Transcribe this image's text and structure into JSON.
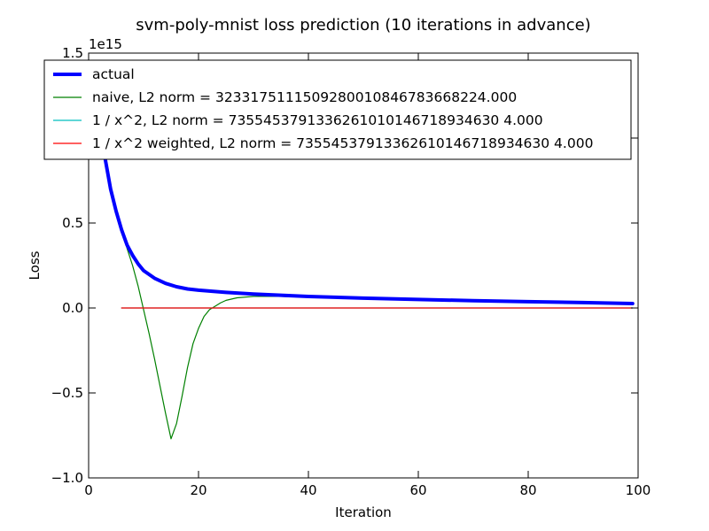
{
  "chart_data": {
    "type": "line",
    "title": "svm-poly-mnist loss prediction (10 iterations in advance)",
    "xlabel": "Iteration",
    "ylabel": "Loss",
    "xlim": [
      0,
      100
    ],
    "ylim": [
      -1.0,
      1.5
    ],
    "y_offset_label": "1e15",
    "x_ticks": [
      0,
      20,
      40,
      60,
      80,
      100
    ],
    "x_tick_labels": [
      "0",
      "20",
      "40",
      "60",
      "80",
      "100"
    ],
    "y_ticks": [
      -1.0,
      -0.5,
      0.0,
      0.5,
      1.0,
      1.5
    ],
    "y_tick_labels": [
      "−1.0",
      "−0.5",
      "0.0",
      "0.5",
      "1.0",
      "1.5"
    ],
    "grid": false,
    "legend_position": "upper-left",
    "series": [
      {
        "name": "actual",
        "color": "#0000ff",
        "x": [
          1,
          2,
          3,
          4,
          5,
          6,
          7,
          8,
          9,
          10,
          12,
          14,
          16,
          18,
          20,
          25,
          30,
          35,
          40,
          50,
          60,
          70,
          80,
          90,
          99
        ],
        "y": [
          1.45,
          1.1,
          0.88,
          0.7,
          0.57,
          0.46,
          0.37,
          0.31,
          0.26,
          0.22,
          0.175,
          0.145,
          0.125,
          0.112,
          0.105,
          0.092,
          0.082,
          0.075,
          0.068,
          0.058,
          0.05,
          0.043,
          0.037,
          0.032,
          0.026
        ]
      },
      {
        "name": "naive, L2 norm = 3233175111509280010846783668224.000",
        "color": "#008000",
        "x": [
          6,
          7,
          8,
          9,
          10,
          11,
          12,
          13,
          14,
          15,
          16,
          17,
          18,
          19,
          20,
          21,
          22,
          23,
          24,
          25,
          27,
          30,
          35,
          40,
          50,
          60,
          70,
          80,
          90,
          99
        ],
        "y": [
          0.46,
          0.35,
          0.25,
          0.13,
          -0.01,
          -0.15,
          -0.3,
          -0.46,
          -0.62,
          -0.77,
          -0.68,
          -0.52,
          -0.35,
          -0.21,
          -0.12,
          -0.05,
          -0.01,
          0.01,
          0.03,
          0.045,
          0.06,
          0.068,
          0.068,
          0.063,
          0.054,
          0.046,
          0.04,
          0.034,
          0.029,
          0.024
        ]
      },
      {
        "name": "1 / x^2, L2 norm = 7355453791336261010146718934630 4.000",
        "color": "#00bfbf",
        "x": [
          6,
          20,
          40,
          60,
          80,
          99
        ],
        "y": [
          0.0,
          0.0,
          0.0,
          0.0,
          0.0,
          0.0
        ]
      },
      {
        "name": "1 / x^2 weighted, L2 norm = 73554537913362610146718934630 4.000",
        "color": "#ff0000",
        "x": [
          6,
          20,
          40,
          60,
          80,
          99
        ],
        "y": [
          0.0,
          0.0,
          0.0,
          0.0,
          0.0,
          0.0
        ]
      }
    ]
  }
}
